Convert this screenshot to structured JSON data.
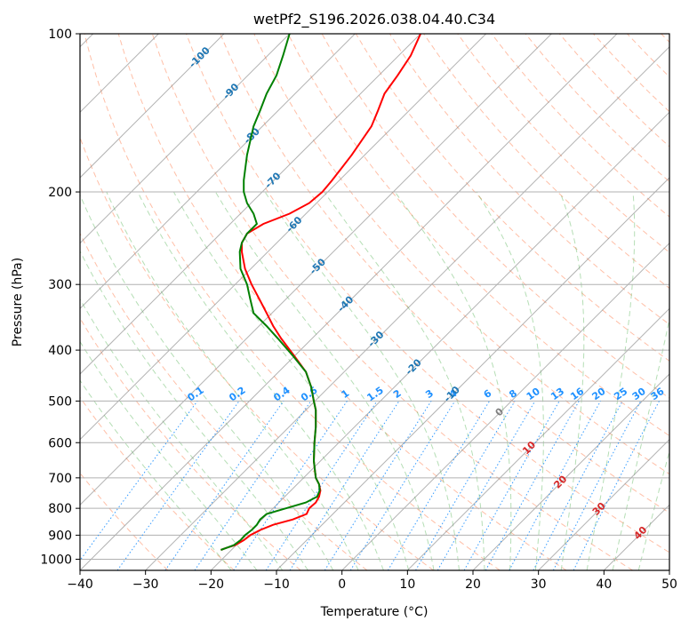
{
  "chart_data": {
    "type": "line",
    "title": "wetPf2_S196.2026.038.04.40.C34",
    "xlabel": "Temperature (°C)",
    "ylabel": "Pressure (hPa)",
    "xlim": [
      -40,
      50
    ],
    "ylim": [
      1050,
      100
    ],
    "y_scale": "log",
    "x_ticks": [
      -40,
      -30,
      -20,
      -10,
      0,
      10,
      20,
      30,
      40,
      50
    ],
    "x_tick_labels": [
      "−40",
      "−30",
      "−20",
      "−10",
      "0",
      "10",
      "20",
      "30",
      "40",
      "50"
    ],
    "y_ticks": [
      1000,
      900,
      800,
      700,
      600,
      500,
      400,
      300,
      200,
      100
    ],
    "y_tick_labels": [
      "1000",
      "900",
      "800",
      "700",
      "600",
      "500",
      "400",
      "300",
      "200",
      "100"
    ],
    "grid": true,
    "colors": {
      "temperature": "#ff0000",
      "dewpoint": "#008000",
      "dry_adiabat": "#ff7f50",
      "moist_adiabat": "#2ca02c",
      "mixing_ratio": "#1e90ff",
      "isotherm": "#808080",
      "isotherm_label": "#1f77b4",
      "warm_isotherm_label": "#d62728"
    },
    "series": [
      {
        "name": "temperature",
        "points": [
          [
            960,
            -18.5
          ],
          [
            950,
            -17.5
          ],
          [
            940,
            -16.3
          ],
          [
            920,
            -15.0
          ],
          [
            900,
            -14.0
          ],
          [
            880,
            -12.5
          ],
          [
            860,
            -10.5
          ],
          [
            840,
            -7.5
          ],
          [
            820,
            -5.4
          ],
          [
            800,
            -5.0
          ],
          [
            780,
            -4.0
          ],
          [
            760,
            -3.5
          ],
          [
            740,
            -3.3
          ],
          [
            720,
            -3.5
          ],
          [
            700,
            -4.0
          ],
          [
            650,
            -4.3
          ],
          [
            600,
            -4.2
          ],
          [
            560,
            -4.0
          ],
          [
            520,
            -4.0
          ],
          [
            500,
            -4.3
          ],
          [
            470,
            -4.7
          ],
          [
            440,
            -5.5
          ],
          [
            410,
            -7.3
          ],
          [
            380,
            -9.3
          ],
          [
            360,
            -10.5
          ],
          [
            340,
            -11.5
          ],
          [
            320,
            -12.6
          ],
          [
            300,
            -13.8
          ],
          [
            280,
            -14.8
          ],
          [
            260,
            -15.3
          ],
          [
            250,
            -15.3
          ],
          [
            240,
            -14.5
          ],
          [
            230,
            -12.0
          ],
          [
            220,
            -8.0
          ],
          [
            210,
            -5.0
          ],
          [
            200,
            -3.0
          ],
          [
            190,
            -1.5
          ],
          [
            170,
            1.5
          ],
          [
            150,
            4.5
          ],
          [
            140,
            5.5
          ],
          [
            130,
            6.5
          ],
          [
            120,
            8.5
          ],
          [
            110,
            10.5
          ],
          [
            100,
            12.0
          ]
        ]
      },
      {
        "name": "dewpoint",
        "points": [
          [
            960,
            -18.5
          ],
          [
            950,
            -17.5
          ],
          [
            940,
            -16.5
          ],
          [
            920,
            -15.5
          ],
          [
            900,
            -14.8
          ],
          [
            880,
            -13.8
          ],
          [
            860,
            -13.0
          ],
          [
            840,
            -12.5
          ],
          [
            820,
            -11.5
          ],
          [
            800,
            -8.5
          ],
          [
            780,
            -5.5
          ],
          [
            760,
            -3.8
          ],
          [
            740,
            -3.4
          ],
          [
            720,
            -3.5
          ],
          [
            700,
            -4.0
          ],
          [
            650,
            -4.3
          ],
          [
            600,
            -4.2
          ],
          [
            560,
            -4.0
          ],
          [
            520,
            -4.0
          ],
          [
            500,
            -4.3
          ],
          [
            470,
            -4.7
          ],
          [
            440,
            -5.5
          ],
          [
            410,
            -7.5
          ],
          [
            380,
            -9.8
          ],
          [
            360,
            -11.5
          ],
          [
            340,
            -13.5
          ],
          [
            320,
            -14.0
          ],
          [
            300,
            -14.5
          ],
          [
            280,
            -15.5
          ],
          [
            260,
            -15.6
          ],
          [
            250,
            -15.3
          ],
          [
            240,
            -14.5
          ],
          [
            230,
            -13.0
          ],
          [
            220,
            -13.5
          ],
          [
            210,
            -14.5
          ],
          [
            200,
            -15.0
          ],
          [
            190,
            -15.0
          ],
          [
            170,
            -14.5
          ],
          [
            150,
            -13.5
          ],
          [
            140,
            -12.5
          ],
          [
            130,
            -11.5
          ],
          [
            120,
            -10.0
          ],
          [
            110,
            -9.0
          ],
          [
            100,
            -8.0
          ]
        ]
      }
    ],
    "isotherm_labels": [
      "-100",
      "-90",
      "-80",
      "-70",
      "-60",
      "-50",
      "-40",
      "-30",
      "-20",
      "-10"
    ],
    "warm_isotherm_labels": [
      "0",
      "10",
      "20",
      "30",
      "40"
    ],
    "mixing_ratio_labels": [
      "0.1",
      "0.2",
      "0.4",
      "0.6",
      "1",
      "1.5",
      "2",
      "3",
      "4",
      "6",
      "8",
      "10",
      "13",
      "16",
      "20",
      "25",
      "30",
      "36"
    ]
  }
}
